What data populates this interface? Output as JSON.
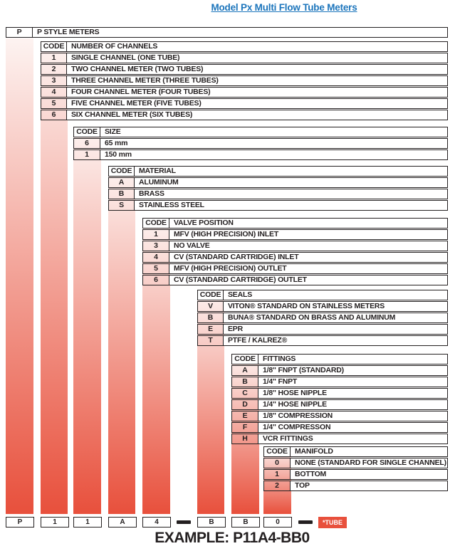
{
  "title": "Model Px Multi Flow Tube Meters",
  "colors": {
    "accent_red": "#E8503C",
    "band_light": "#FDF3F1",
    "title_blue": "#1C75BC",
    "ink": "#231F20"
  },
  "tables": [
    {
      "id": "style",
      "code_header": "P",
      "title": "P STYLE METERS",
      "rows": []
    },
    {
      "id": "channels",
      "code_header": "CODE",
      "title": "NUMBER OF CHANNELS",
      "rows": [
        {
          "code": "1",
          "label": "SINGLE CHANNEL (ONE TUBE)"
        },
        {
          "code": "2",
          "label": "TWO CHANNEL METER (TWO TUBES)"
        },
        {
          "code": "3",
          "label": "THREE CHANNEL METER (THREE TUBES)"
        },
        {
          "code": "4",
          "label": "FOUR CHANNEL METER (FOUR TUBES)"
        },
        {
          "code": "5",
          "label": "FIVE CHANNEL METER (FIVE TUBES)"
        },
        {
          "code": "6",
          "label": "SIX CHANNEL METER (SIX TUBES)"
        }
      ]
    },
    {
      "id": "size",
      "code_header": "CODE",
      "title": "SIZE",
      "rows": [
        {
          "code": "6",
          "label": "65 mm"
        },
        {
          "code": "1",
          "label": "150 mm"
        }
      ]
    },
    {
      "id": "material",
      "code_header": "CODE",
      "title": "MATERIAL",
      "rows": [
        {
          "code": "A",
          "label": "ALUMINUM"
        },
        {
          "code": "B",
          "label": "BRASS"
        },
        {
          "code": "S",
          "label": "STAINLESS STEEL"
        }
      ]
    },
    {
      "id": "valve-position",
      "code_header": "CODE",
      "title": "VALVE POSITION",
      "rows": [
        {
          "code": "1",
          "label": "MFV (HIGH PRECISION) INLET"
        },
        {
          "code": "3",
          "label": "NO VALVE"
        },
        {
          "code": "4",
          "label": "CV (STANDARD CARTRIDGE) INLET"
        },
        {
          "code": "5",
          "label": "MFV (HIGH PRECISION) OUTLET"
        },
        {
          "code": "6",
          "label": "CV (STANDARD CARTRIDGE) OUTLET"
        }
      ]
    },
    {
      "id": "seals",
      "code_header": "CODE",
      "title": "SEALS",
      "rows": [
        {
          "code": "V",
          "label": "VITON® STANDARD ON STAINLESS METERS"
        },
        {
          "code": "B",
          "label": "BUNA® STANDARD ON BRASS AND ALUMINUM"
        },
        {
          "code": "E",
          "label": "EPR"
        },
        {
          "code": "T",
          "label": "PTFE / KALREZ®"
        }
      ]
    },
    {
      "id": "fittings",
      "code_header": "CODE",
      "title": "FITTINGS",
      "rows": [
        {
          "code": "A",
          "label": "1/8\" FNPT (STANDARD)"
        },
        {
          "code": "B",
          "label": "1/4\" FNPT"
        },
        {
          "code": "C",
          "label": "1/8\" HOSE NIPPLE"
        },
        {
          "code": "D",
          "label": "1/4\" HOSE NIPPLE"
        },
        {
          "code": "E",
          "label": "1/8\" COMPRESSION"
        },
        {
          "code": "F",
          "label": "1/4\" COMPRESSON"
        },
        {
          "code": "H",
          "label": "VCR FITTINGS"
        }
      ]
    },
    {
      "id": "manifold",
      "code_header": "CODE",
      "title": "MANIFOLD",
      "rows": [
        {
          "code": "0",
          "label": "NONE (STANDARD FOR SINGLE CHANNEL)"
        },
        {
          "code": "1",
          "label": "BOTTOM"
        },
        {
          "code": "2",
          "label": "TOP"
        }
      ]
    }
  ],
  "example": {
    "boxes": [
      "P",
      "1",
      "1",
      "A",
      "4",
      "B",
      "B",
      "0"
    ],
    "tube_label": "*TUBE",
    "caption": "EXAMPLE: P11A4-BB0"
  }
}
